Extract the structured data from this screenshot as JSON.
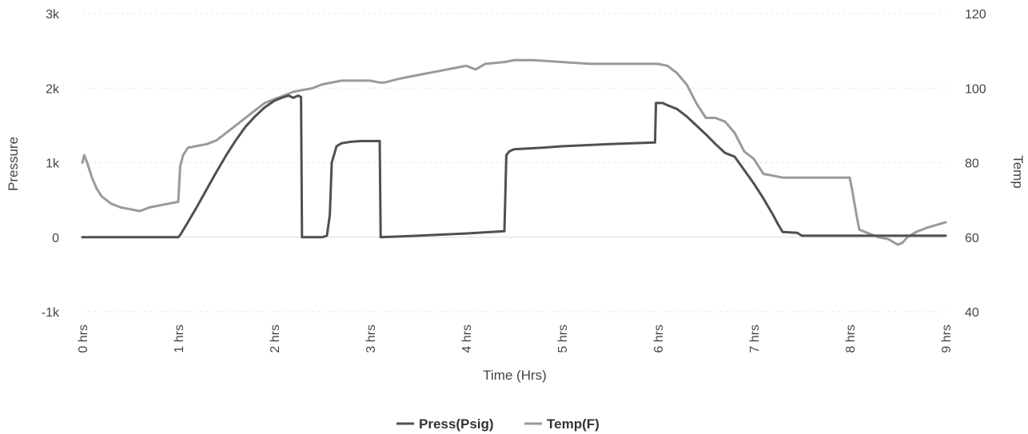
{
  "chart_data": {
    "type": "line",
    "title": "",
    "xlabel": "Time (Hrs)",
    "ylabel_left": "Pressure",
    "ylabel_right": "Temp",
    "xlim": [
      0,
      9
    ],
    "ylim_left": [
      -1000,
      3000
    ],
    "ylim_right": [
      40,
      120
    ],
    "x_ticks": [
      0,
      1,
      2,
      3,
      4,
      5,
      6,
      7,
      8,
      9
    ],
    "x_tick_labels": [
      "0 hrs",
      "1 hrs",
      "2 hrs",
      "3 hrs",
      "4 hrs",
      "5 hrs",
      "6 hrs",
      "7 hrs",
      "8 hrs",
      "9 hrs"
    ],
    "y_left_ticks": [
      -1000,
      0,
      1000,
      2000,
      3000
    ],
    "y_left_tick_labels": [
      "-1k",
      "0",
      "1k",
      "2k",
      "3k"
    ],
    "y_right_ticks": [
      40,
      60,
      80,
      100,
      120
    ],
    "y_right_tick_labels": [
      "40",
      "60",
      "80",
      "100",
      "120"
    ],
    "grid": true,
    "legend_position": "bottom-center",
    "series": [
      {
        "name": "Press(Psig)",
        "axis": "left",
        "color": "#505050",
        "x": [
          0,
          0.5,
          1.0,
          1.02,
          1.1,
          1.2,
          1.3,
          1.4,
          1.5,
          1.6,
          1.7,
          1.8,
          1.9,
          2.0,
          2.1,
          2.15,
          2.2,
          2.25,
          2.28,
          2.29,
          2.3,
          2.5,
          2.55,
          2.58,
          2.6,
          2.65,
          2.7,
          2.8,
          2.9,
          3.0,
          3.1,
          3.11,
          3.5,
          4.0,
          4.4,
          4.42,
          4.45,
          4.5,
          4.8,
          5.0,
          5.5,
          5.97,
          5.98,
          6.0,
          6.05,
          6.1,
          6.2,
          6.3,
          6.4,
          6.5,
          6.6,
          6.7,
          6.8,
          6.9,
          7.0,
          7.1,
          7.2,
          7.25,
          7.3,
          7.45,
          7.5,
          8.0,
          8.5,
          9.0
        ],
        "y": [
          0,
          0,
          0,
          30,
          200,
          420,
          650,
          880,
          1100,
          1300,
          1480,
          1620,
          1740,
          1830,
          1880,
          1900,
          1870,
          1900,
          1880,
          0,
          0,
          0,
          20,
          300,
          1000,
          1220,
          1260,
          1280,
          1290,
          1290,
          1290,
          0,
          20,
          50,
          80,
          1100,
          1150,
          1180,
          1200,
          1220,
          1250,
          1270,
          1800,
          1800,
          1800,
          1770,
          1720,
          1620,
          1500,
          1380,
          1250,
          1130,
          1080,
          900,
          720,
          520,
          300,
          180,
          70,
          60,
          20,
          20,
          20,
          20
        ]
      },
      {
        "name": "Temp(F)",
        "axis": "right",
        "color": "#9a9a9a",
        "x": [
          0,
          0.02,
          0.05,
          0.1,
          0.15,
          0.2,
          0.3,
          0.4,
          0.5,
          0.6,
          0.65,
          0.7,
          0.8,
          0.9,
          1.0,
          1.02,
          1.05,
          1.1,
          1.2,
          1.3,
          1.4,
          1.5,
          1.6,
          1.7,
          1.8,
          1.9,
          2.0,
          2.1,
          2.2,
          2.4,
          2.5,
          2.6,
          2.7,
          2.8,
          3.0,
          3.1,
          3.15,
          3.3,
          3.5,
          3.7,
          3.9,
          4.0,
          4.1,
          4.2,
          4.4,
          4.5,
          4.7,
          5.0,
          5.3,
          5.6,
          5.9,
          6.0,
          6.1,
          6.2,
          6.3,
          6.4,
          6.5,
          6.6,
          6.7,
          6.8,
          6.9,
          7.0,
          7.1,
          7.2,
          7.3,
          7.5,
          7.8,
          8.0,
          8.03,
          8.07,
          8.1,
          8.2,
          8.3,
          8.4,
          8.5,
          8.55,
          8.6,
          8.7,
          8.8,
          9.0
        ],
        "y": [
          80,
          82,
          80,
          76,
          73,
          71,
          69,
          68,
          67.5,
          67,
          67.5,
          68,
          68.5,
          69,
          69.5,
          79,
          82,
          84,
          84.5,
          85,
          86,
          88,
          90,
          92,
          94,
          96,
          97,
          98,
          99,
          100,
          101,
          101.5,
          102,
          102,
          102,
          101.5,
          101.5,
          102.5,
          103.5,
          104.5,
          105.5,
          106,
          105,
          106.5,
          107,
          107.5,
          107.5,
          107,
          106.5,
          106.5,
          106.5,
          106.5,
          106,
          104,
          101,
          96,
          92,
          92,
          91,
          88,
          83,
          81,
          77,
          76.5,
          76,
          76,
          76,
          76,
          72,
          66,
          62,
          61,
          60,
          59.5,
          58,
          58.5,
          60,
          61.5,
          62.5,
          64
        ]
      }
    ]
  }
}
